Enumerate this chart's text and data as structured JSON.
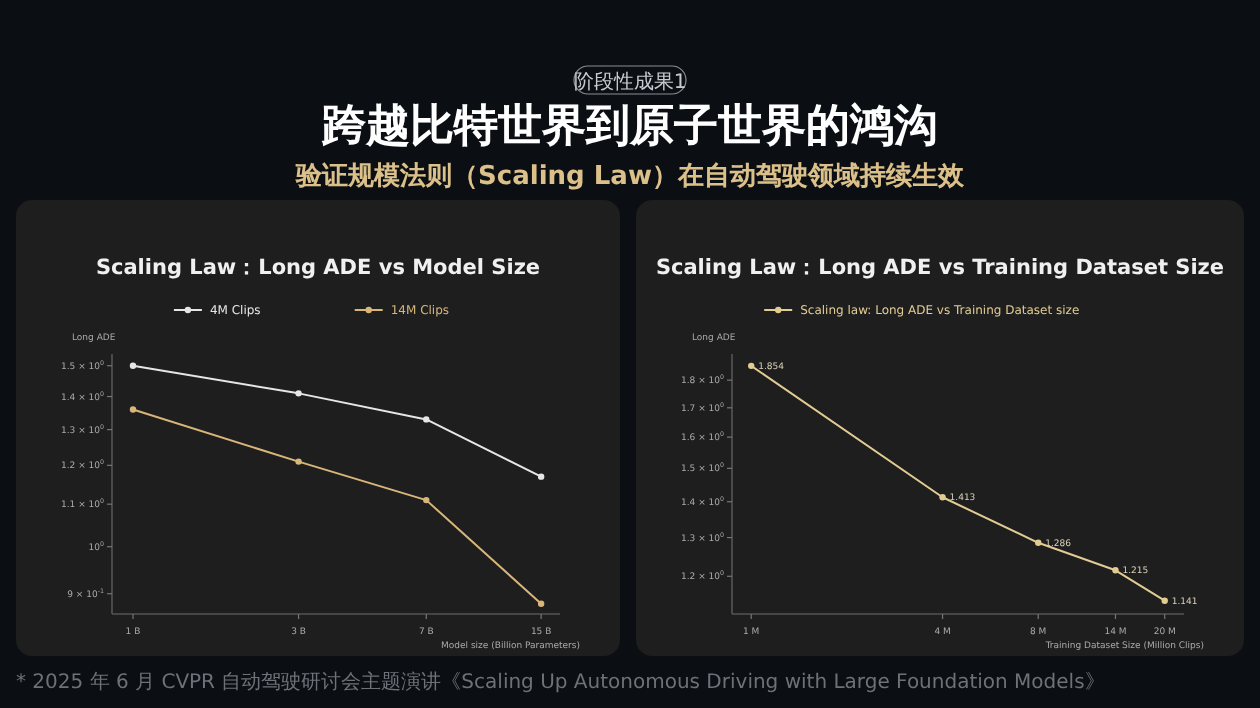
{
  "chart_data": [
    {
      "type": "other",
      "title": "跨越比特世界到原子世界的鸿沟",
      "subtitle": "验证规模法则（Scaling Law）在自动驾驶领域持续生效",
      "annotations": [
        "阶段性成果1",
        "* 2025 年 6 月 CVPR 自动驾驶研讨会主题演讲《Scaling Up Autonomous Driving with Large Foundation Models》"
      ]
    },
    {
      "type": "line",
      "title": "Scaling Law：Long ADE vs Model Size",
      "xlabel": "Model size (Billion Parameters)",
      "ylabel": "Long ADE",
      "log": "xy",
      "legend": "top",
      "marker": "circle",
      "x": [
        1,
        3,
        7,
        15
      ],
      "xlim": [
        0.87,
        17
      ],
      "ylim": [
        0.86,
        1.54
      ],
      "xticks": [
        {
          "value": 1,
          "label": "1 B"
        },
        {
          "value": 3,
          "label": "3 B"
        },
        {
          "value": 7,
          "label": "7 B"
        },
        {
          "value": 15,
          "label": "15 B"
        }
      ],
      "yticks": [
        {
          "value": 0.9,
          "label": "9 × 10$^{-1}$"
        },
        {
          "value": 1,
          "label": "10$^{0}$"
        },
        {
          "value": 1.1,
          "label": "1.1 × 10$^{0}$"
        },
        {
          "value": 1.2,
          "label": "1.2 × 10$^{0}$"
        },
        {
          "value": 1.3,
          "label": "1.3 × 10$^{0}$"
        },
        {
          "value": 1.4,
          "label": "1.4 × 10$^{0}$"
        },
        {
          "value": 1.5,
          "label": "1.5 × 10$^{0}$"
        }
      ],
      "series": [
        {
          "name": "4M Clips",
          "color": "#e6e6e6",
          "values": [
            1.5,
            1.41,
            1.33,
            1.17
          ]
        },
        {
          "name": "14M Clips",
          "color": "#d8b67a",
          "values": [
            1.36,
            1.21,
            1.11,
            0.88
          ]
        }
      ]
    },
    {
      "type": "line",
      "title": "Scaling Law：Long ADE vs Training Dataset Size",
      "xlabel": "Training Dataset Size (Million Clips)",
      "ylabel": "Long ADE",
      "log": "xy",
      "legend": "top",
      "marker": "circle",
      "x": [
        1,
        4,
        8,
        14,
        20
      ],
      "xlim": [
        0.87,
        23
      ],
      "ylim": [
        1.11,
        1.9
      ],
      "xticks": [
        {
          "value": 1,
          "label": "1 M"
        },
        {
          "value": 4,
          "label": "4 M"
        },
        {
          "value": 8,
          "label": "8 M"
        },
        {
          "value": 14,
          "label": "14 M"
        },
        {
          "value": 20,
          "label": "20 M"
        }
      ],
      "yticks": [
        {
          "value": 1.2,
          "label": "1.2 × 10$^{0}$"
        },
        {
          "value": 1.3,
          "label": "1.3 × 10$^{0}$"
        },
        {
          "value": 1.4,
          "label": "1.4 × 10$^{0}$"
        },
        {
          "value": 1.5,
          "label": "1.5 × 10$^{0}$"
        },
        {
          "value": 1.6,
          "label": "1.6 × 10$^{0}$"
        },
        {
          "value": 1.7,
          "label": "1.7 × 10$^{0}$"
        },
        {
          "value": 1.8,
          "label": "1.8 × 10$^{0}$"
        }
      ],
      "series": [
        {
          "name": "Scaling law: Long ADE vs Training Dataset size",
          "color": "#e2cc94",
          "values": [
            1.854,
            1.413,
            1.286,
            1.215,
            1.141
          ],
          "value_labels": [
            "1.854",
            "1.413",
            "1.286",
            "1.215",
            "1.141"
          ]
        }
      ]
    }
  ]
}
